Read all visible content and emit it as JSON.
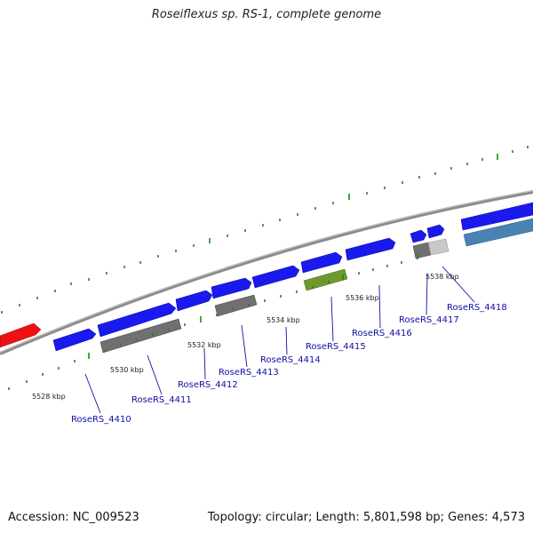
{
  "title": "Roseiflexus sp. RS-1, complete genome",
  "footer": {
    "accession": "Accession: NC_009523",
    "summary": "Topology: circular; Length: 5,801,598 bp; Genes: 4,573"
  },
  "colors": {
    "forward_gene": "#1a1aee",
    "red_gene": "#ee1111",
    "gray_feature": "#707070",
    "light_gray_feature": "#c8c8c8",
    "green_feature": "#6e9a2c",
    "steel_blue_feature": "#4a82b4",
    "tick": "#1a8a1a",
    "backbone": "#909090",
    "label_line": "#1010a0"
  },
  "position_labels": [
    {
      "text": "5528 kbp"
    },
    {
      "text": "5530 kbp"
    },
    {
      "text": "5532 kbp"
    },
    {
      "text": "5534 kbp"
    },
    {
      "text": "5536 kbp"
    },
    {
      "text": "5538 kbp"
    }
  ],
  "gene_labels": [
    {
      "text": "RoseRS_4410"
    },
    {
      "text": "RoseRS_4411"
    },
    {
      "text": "RoseRS_4412"
    },
    {
      "text": "RoseRS_4413"
    },
    {
      "text": "RoseRS_4414"
    },
    {
      "text": "RoseRS_4415"
    },
    {
      "text": "RoseRS_4416"
    },
    {
      "text": "RoseRS_4417"
    },
    {
      "text": "RoseRS_4418"
    }
  ]
}
